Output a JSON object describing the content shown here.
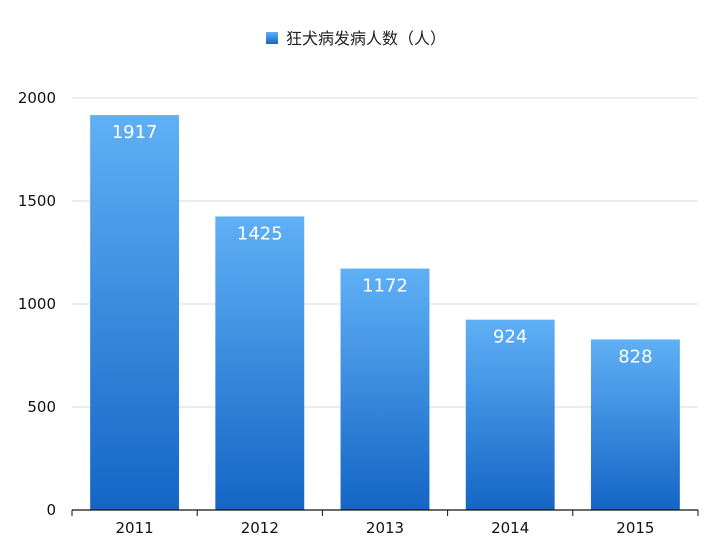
{
  "chart_data": {
    "type": "bar",
    "title": "",
    "xlabel": "",
    "ylabel": "",
    "legend": {
      "placement": "top-center",
      "entries": [
        "狂犬病发病人数（人）"
      ]
    },
    "categories": [
      "2011",
      "2012",
      "2013",
      "2014",
      "2015"
    ],
    "series": [
      {
        "name": "狂犬病发病人数（人）",
        "values": [
          1917,
          1425,
          1172,
          924,
          828
        ],
        "color": "#2f86e0"
      }
    ],
    "ylim": [
      0,
      2000
    ],
    "yticks": [
      0,
      500,
      1000,
      1500,
      2000
    ],
    "grid": true,
    "data_labels": true
  }
}
